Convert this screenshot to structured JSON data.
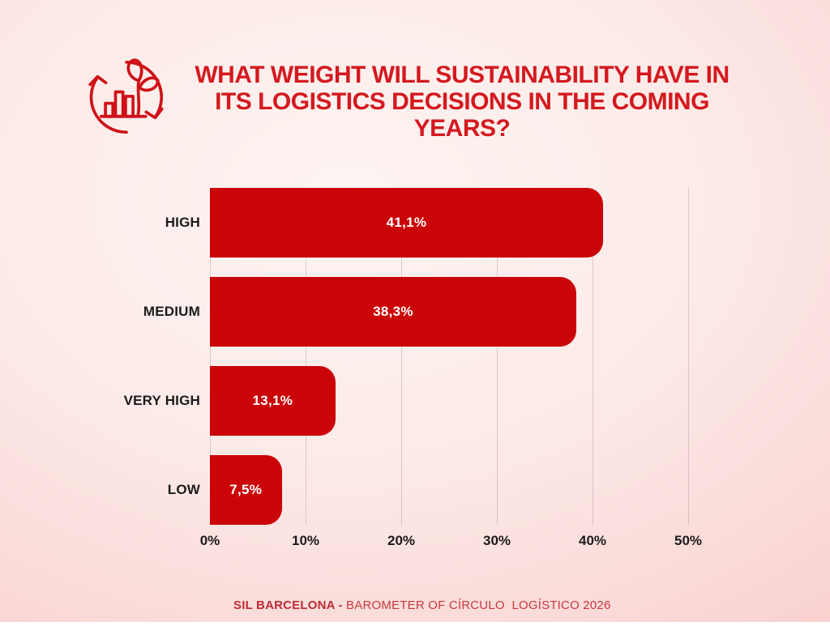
{
  "header": {
    "icon": "sustainability-cycle-bar-chart-icon",
    "title_lines": [
      "WHAT WEIGHT WILL SUSTAINABILITY HAVE IN",
      "ITS LOGISTICS DECISIONS IN THE COMING",
      "YEARS?"
    ]
  },
  "chart_data": {
    "type": "bar",
    "orientation": "horizontal",
    "title": "WHAT WEIGHT WILL SUSTAINABILITY HAVE IN ITS LOGISTICS DECISIONS IN THE COMING YEARS?",
    "categories": [
      "HIGH",
      "MEDIUM",
      "VERY HIGH",
      "LOW"
    ],
    "values": [
      41.1,
      38.3,
      13.1,
      7.5
    ],
    "value_labels": [
      "41,1%",
      "38,3%",
      "13,1%",
      "7,5%"
    ],
    "xlim": [
      0,
      50
    ],
    "x_ticks": [
      "0%",
      "10%",
      "20%",
      "30%",
      "40%",
      "50%"
    ],
    "grid": true,
    "legend": false,
    "bar_color": "#cb0408",
    "value_label_color": "#ffffff"
  },
  "footer": {
    "bold": "SIL BARCELONA - ",
    "text": "BAROMETER OF CÍRCULO  LOGÍSTICO 2026"
  },
  "colors": {
    "title_red": "#d4191f",
    "bar_red": "#cb0408",
    "footer_red": "#c9383e",
    "background_pink": "#f8cbca"
  }
}
